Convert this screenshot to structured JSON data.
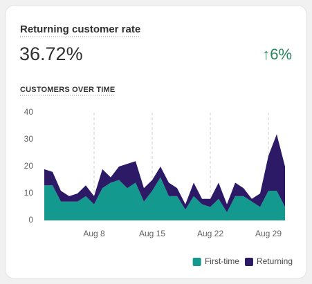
{
  "chart_data": {
    "type": "stacked-area",
    "card_title": "Returning customer rate",
    "metric": "36.72%",
    "change": "↑6%",
    "title": "CUSTOMERS OVER TIME",
    "categories": [
      null,
      null,
      null,
      null,
      null,
      null,
      "Aug 8",
      null,
      null,
      null,
      null,
      null,
      null,
      "Aug 15",
      null,
      null,
      null,
      null,
      null,
      null,
      "Aug 22",
      null,
      null,
      null,
      null,
      null,
      null,
      "Aug 29",
      null,
      null
    ],
    "series": [
      {
        "name": "First-time",
        "color": "#14998f",
        "values": [
          13,
          13,
          7,
          7,
          7,
          9,
          6,
          12,
          14,
          15,
          12,
          14,
          7,
          11,
          16,
          9,
          9,
          4,
          9,
          6,
          5,
          8,
          3,
          9,
          9,
          7,
          5,
          11,
          11,
          5
        ]
      },
      {
        "name": "Returning",
        "color": "#2c1a66",
        "values": [
          6,
          5,
          4,
          2,
          3,
          4,
          3,
          7,
          2,
          5,
          9,
          8,
          5,
          4,
          4,
          5,
          3,
          2,
          5,
          2,
          3,
          6,
          3,
          5,
          3,
          1,
          5,
          13,
          21,
          15
        ]
      }
    ],
    "ylim": [
      0,
      40
    ],
    "yticks": [
      0,
      10,
      20,
      30,
      40
    ],
    "grid": "x",
    "legend": "bottom-right"
  }
}
